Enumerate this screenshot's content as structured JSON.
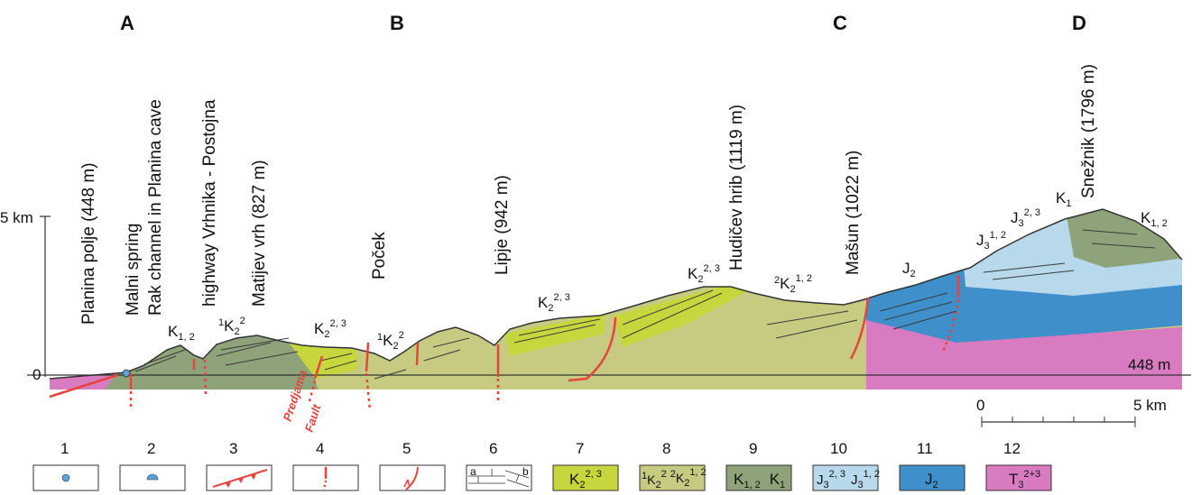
{
  "sections": {
    "a": "A",
    "b": "B",
    "c": "C",
    "d": "D"
  },
  "localities": [
    "Planina polje (448 m)",
    "Malni spring",
    "Rak channel in Planina cave",
    "highway Vrhnika - Postojna",
    "Matijev vrh (827 m)",
    "Poček",
    "Lipje (942 m)",
    "Hudičev hrib (1119 m)",
    "Mašun (1022 m)",
    "Snežnik (1796 m)"
  ],
  "formations": {
    "k": "K",
    "j": "J",
    "t": "T",
    "sub_12": "1, 2",
    "sub_2": "2",
    "sub_1": "1",
    "sub_3": "3",
    "sup_23": "2, 3",
    "sup_2": "2",
    "sup_12": "1, 2",
    "sup_1": "1",
    "sup_2p3": "2+3"
  },
  "axis": {
    "top": "5 km",
    "zero": "0",
    "datum": "448 m"
  },
  "fault_labels": {
    "predjama": "Predjama",
    "fault": "Fault"
  },
  "scale": {
    "start": "0",
    "end": "5 km"
  },
  "legend": {
    "numbers": [
      "1",
      "2",
      "3",
      "4",
      "5",
      "6",
      "7",
      "8",
      "9",
      "10",
      "11",
      "12"
    ],
    "a": "a",
    "b": "b"
  },
  "colors": {
    "k2_23": "#c8d63d",
    "k2_12": "#c7cb82",
    "k12": "#8ea37a",
    "j3": "#b8d8ec",
    "j2": "#3f8fca",
    "t3": "#d87bc0",
    "fault": "#e8433d"
  },
  "icons": [
    "spring-icon",
    "cave-spring-icon",
    "thrust-fault-icon",
    "fault-icon",
    "reverse-fault-icon",
    "bedding-icon"
  ]
}
